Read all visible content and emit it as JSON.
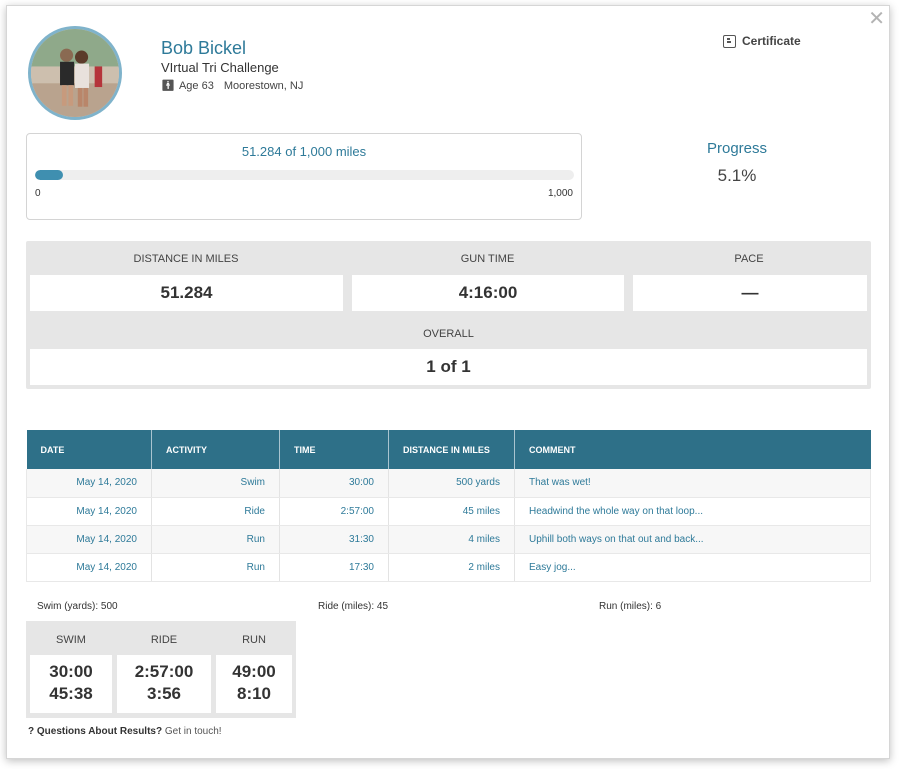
{
  "close_icon": "close-x-icon",
  "athlete": {
    "name": "Bob Bickel",
    "event": "VIrtual Tri Challenge",
    "age": "Age 63",
    "location": "Moorestown, NJ"
  },
  "certificate": {
    "label": "Certificate",
    "icon": "certificate-icon"
  },
  "progress": {
    "text": "51.284 of 1,000 miles",
    "min_label": "0",
    "max_label": "1,000",
    "fraction": 0.051284,
    "title": "Progress",
    "percent": "5.1%"
  },
  "stats": {
    "distance_label": "DISTANCE IN MILES",
    "distance_value": "51.284",
    "gun_time_label": "GUN TIME",
    "gun_time_value": "4:16:00",
    "pace_label": "PACE",
    "pace_value": "—",
    "overall_label": "OVERALL",
    "overall_value": "1 of 1"
  },
  "table": {
    "headers": [
      "DATE",
      "ACTIVITY",
      "TIME",
      "DISTANCE IN MILES",
      "COMMENT"
    ],
    "rows": [
      {
        "date": "May 14, 2020",
        "activity": "Swim",
        "time": "30:00",
        "distance": "500 yards",
        "comment": "That was wet!"
      },
      {
        "date": "May 14, 2020",
        "activity": "Ride",
        "time": "2:57:00",
        "distance": "45 miles",
        "comment": "Headwind the whole way on that loop..."
      },
      {
        "date": "May 14, 2020",
        "activity": "Run",
        "time": "31:30",
        "distance": "4 miles",
        "comment": "Uphill both ways on that out and back..."
      },
      {
        "date": "May 14, 2020",
        "activity": "Run",
        "time": "17:30",
        "distance": "2 miles",
        "comment": "Easy jog..."
      }
    ]
  },
  "totals": {
    "swim": "Swim (yards): 500",
    "ride": "Ride (miles): 45",
    "run": "Run (miles): 6"
  },
  "splits": {
    "swim_label": "SWIM",
    "ride_label": "RIDE",
    "run_label": "RUN",
    "swim_time": "30:00",
    "swim_pace": "45:38",
    "ride_time": "2:57:00",
    "ride_pace": "3:56",
    "run_time": "49:00",
    "run_pace": "8:10"
  },
  "footer": {
    "question_mark": "?",
    "question": "Questions About Results?",
    "link": "Get in touch!"
  }
}
